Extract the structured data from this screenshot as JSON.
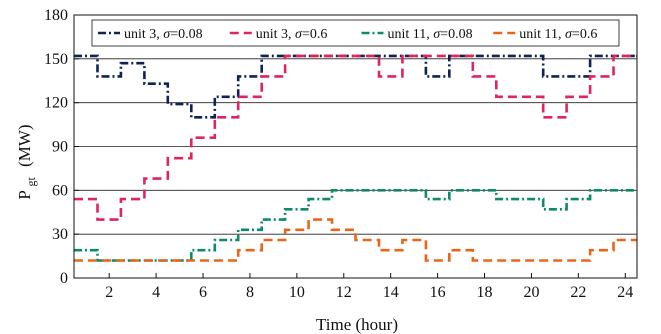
{
  "chart_data": {
    "type": "line",
    "xlabel": "Time (hour)",
    "ylabel": {
      "base": "P",
      "sub": "gt",
      "unit": "(MW)"
    },
    "xlim": [
      0.5,
      24.5
    ],
    "ylim": [
      0,
      180
    ],
    "xticks": [
      2,
      4,
      6,
      8,
      10,
      12,
      14,
      16,
      18,
      20,
      22,
      24
    ],
    "yticks": [
      0,
      30,
      60,
      90,
      120,
      150,
      180
    ],
    "grid": "horizontal",
    "legend_position": "top",
    "step": "centered",
    "x": [
      1,
      2,
      3,
      4,
      5,
      6,
      7,
      8,
      9,
      10,
      11,
      12,
      13,
      14,
      15,
      16,
      17,
      18,
      19,
      20,
      21,
      22,
      23,
      24
    ],
    "series": [
      {
        "name": "unit 3, σ=0.08",
        "legend_parts": {
          "pre": "unit 3, ",
          "sym": "σ",
          "post": "=0.08"
        },
        "color": "#0e2350",
        "dash": "dashdot",
        "values": [
          152,
          138,
          147,
          133,
          119,
          110,
          124,
          138,
          152,
          152,
          152,
          152,
          152,
          152,
          152,
          138,
          152,
          152,
          152,
          152,
          138,
          138,
          152,
          152
        ]
      },
      {
        "name": "unit 3, σ=0.6",
        "legend_parts": {
          "pre": "unit 3, ",
          "sym": "σ",
          "post": "=0.6"
        },
        "color": "#e0245e",
        "dash": "dash",
        "values": [
          54,
          40,
          54,
          68,
          82,
          96,
          110,
          124,
          138,
          152,
          152,
          152,
          152,
          138,
          152,
          152,
          152,
          138,
          124,
          124,
          110,
          124,
          138,
          152
        ]
      },
      {
        "name": "unit 11, σ=0.08",
        "legend_parts": {
          "pre": "unit 11, ",
          "sym": "σ",
          "post": "=0.08"
        },
        "color": "#0d8a6a",
        "dash": "dashdot",
        "values": [
          19,
          12,
          12,
          12,
          12,
          19,
          26,
          33,
          40,
          47,
          54,
          60,
          60,
          60,
          60,
          54,
          60,
          60,
          54,
          54,
          47,
          54,
          60,
          60
        ]
      },
      {
        "name": "unit 11, σ=0.6",
        "legend_parts": {
          "pre": "unit 11, ",
          "sym": "σ",
          "post": "=0.6"
        },
        "color": "#e8661a",
        "dash": "dash",
        "values": [
          12,
          12,
          12,
          12,
          12,
          12,
          12,
          19,
          26,
          33,
          40,
          33,
          26,
          19,
          26,
          12,
          19,
          12,
          12,
          12,
          12,
          12,
          19,
          26
        ]
      }
    ]
  }
}
